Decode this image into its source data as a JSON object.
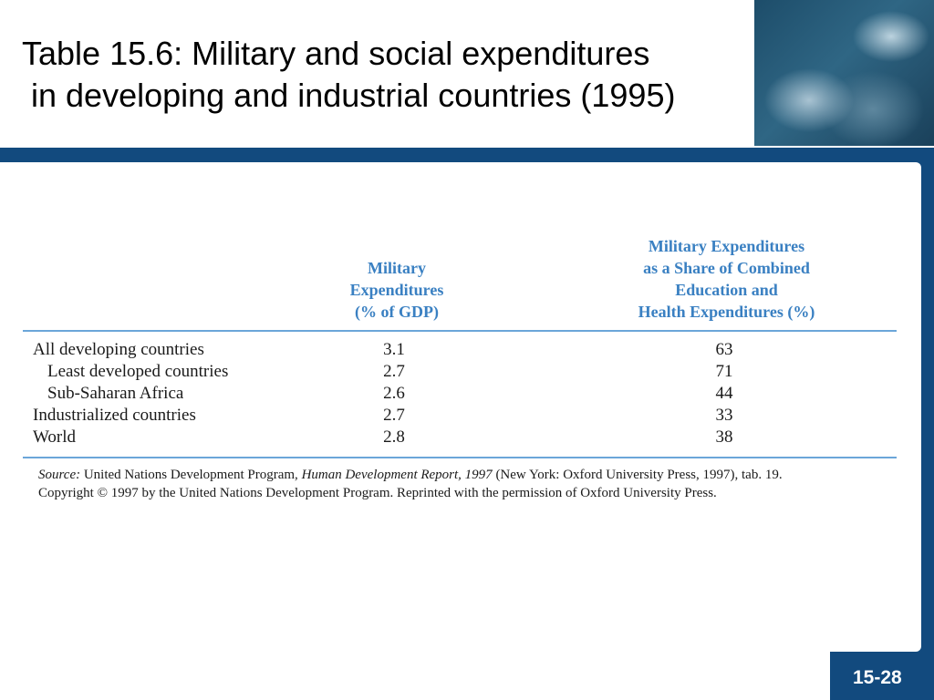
{
  "title": {
    "line1": "Table 15.6: Military and social expenditures",
    "line2": " in developing and industrial countries (1995)"
  },
  "table": {
    "col1_header": [
      "Military",
      "Expenditures",
      "(% of GDP)"
    ],
    "col2_header": [
      "Military Expenditures",
      "as a Share of Combined",
      "Education and",
      "Health Expenditures (%)"
    ],
    "rows": [
      {
        "label": "All developing countries",
        "military_pct_gdp": "3.1",
        "share_pct": "63",
        "indent": false
      },
      {
        "label": "Least developed countries",
        "military_pct_gdp": "2.7",
        "share_pct": "71",
        "indent": true
      },
      {
        "label": "Sub-Saharan Africa",
        "military_pct_gdp": "2.6",
        "share_pct": "44",
        "indent": true
      },
      {
        "label": "Industrialized countries",
        "military_pct_gdp": "2.7",
        "share_pct": "33",
        "indent": false
      },
      {
        "label": "World",
        "military_pct_gdp": "2.8",
        "share_pct": "38",
        "indent": false
      }
    ]
  },
  "source": {
    "prefix": "Source:",
    "text_a": " United Nations Development Program, ",
    "report": "Human Development Report, 1997",
    "text_b": " (New York: Oxford University Press, 1997), tab. 19.",
    "line2": "Copyright © 1997 by the United Nations Development Program. Reprinted with the permission of Oxford University Press."
  },
  "footer": {
    "page_number": "15-28"
  },
  "colors": {
    "frame_blue": "#124a7e",
    "header_blue": "#3a80c2",
    "rule_blue": "#6ba6d9"
  }
}
